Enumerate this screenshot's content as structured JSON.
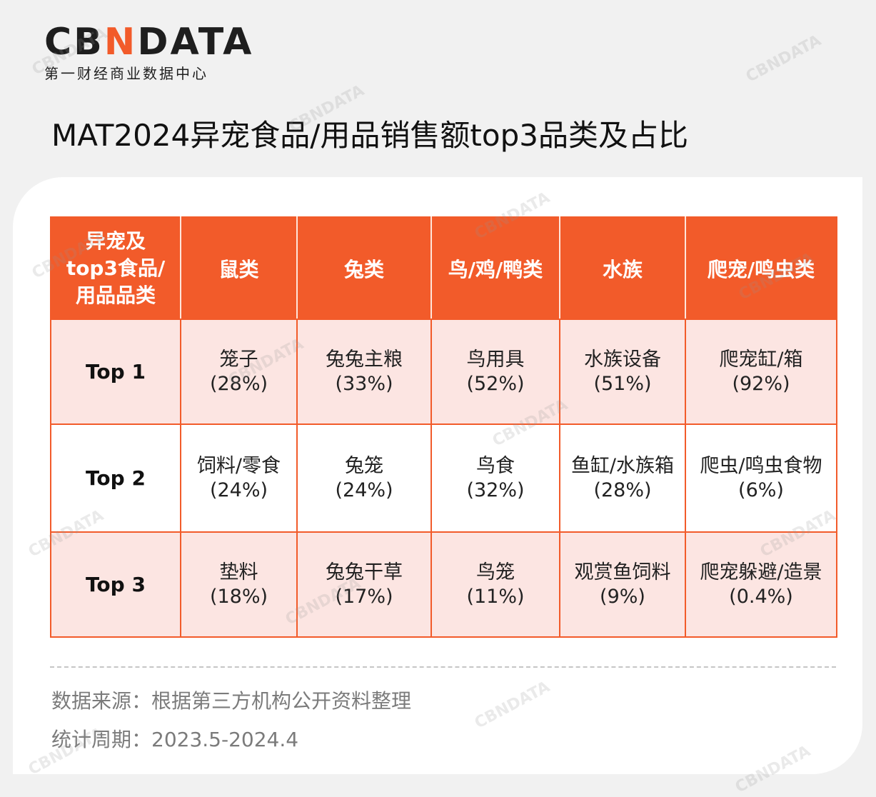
{
  "brand": {
    "logo_text_left": "CB",
    "logo_text_accent": "N",
    "logo_text_right": "DATA",
    "subtitle": "第一财经商业数据中心",
    "accent_color": "#f25b2a"
  },
  "watermark": "CBNDATA",
  "page_title": "MAT2024异宠食品/用品销售额top3品类及占比",
  "chart_data": {
    "type": "table",
    "title": "MAT2024异宠食品/用品销售额top3品类及占比",
    "corner_header": [
      "异宠及",
      "top3食品/",
      "用品品类"
    ],
    "columns": [
      "鼠类",
      "兔类",
      "鸟/鸡/鸭类",
      "水族",
      "爬宠/鸣虫类"
    ],
    "rows": [
      {
        "rank": "Top 1",
        "cells": [
          {
            "name": "笼子",
            "share": "(28%)"
          },
          {
            "name": "兔兔主粮",
            "share": "(33%)"
          },
          {
            "name": "鸟用具",
            "share": "(52%)"
          },
          {
            "name": "水族设备",
            "share": "(51%)"
          },
          {
            "name": "爬宠缸/箱",
            "share": "(92%)"
          }
        ]
      },
      {
        "rank": "Top 2",
        "cells": [
          {
            "name": "饲料/零食",
            "share": "(24%)"
          },
          {
            "name": "兔笼",
            "share": "(24%)"
          },
          {
            "name": "鸟食",
            "share": "(32%)"
          },
          {
            "name": "鱼缸/水族箱",
            "share": "(28%)"
          },
          {
            "name": "爬虫/鸣虫食物",
            "share": "(6%)"
          }
        ]
      },
      {
        "rank": "Top 3",
        "cells": [
          {
            "name": "垫料",
            "share": "(18%)"
          },
          {
            "name": "兔兔干草",
            "share": "(17%)"
          },
          {
            "name": "鸟笼",
            "share": "(11%)"
          },
          {
            "name": "观赏鱼饲料",
            "share": "(9%)"
          },
          {
            "name": "爬宠躲避/造景",
            "share": "(0.4%)"
          }
        ]
      }
    ]
  },
  "footer": {
    "source": "数据来源：根据第三方机构公开资料整理",
    "period": "统计周期：2023.5-2024.4"
  }
}
